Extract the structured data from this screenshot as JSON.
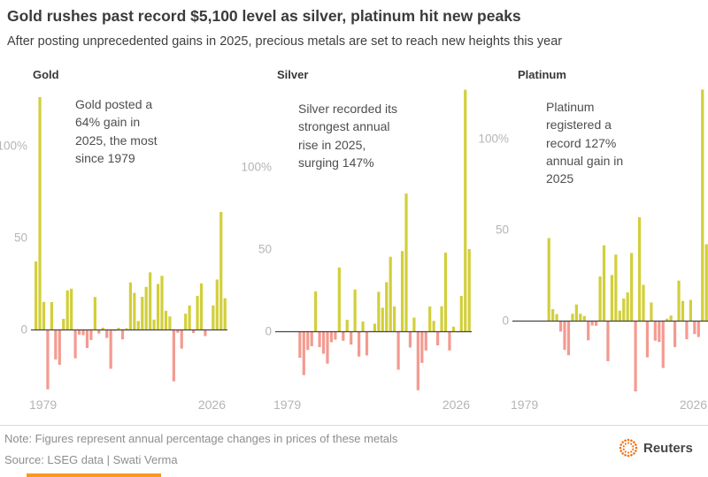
{
  "header": {
    "title": "Gold rushes past record $5,100 level as silver, platinum hit new peaks",
    "subtitle": "After posting unprecedented gains in 2025, precious metals are set to reach new heights this year"
  },
  "chart_data": [
    {
      "type": "bar",
      "title": "Gold",
      "annotation": "Gold posted a 64% gain in 2025, the most since 1979",
      "unit": "%",
      "ylabel": "annual % change",
      "ylim": [
        -40,
        130
      ],
      "grid": false,
      "y_ticks": [
        {
          "value": 100,
          "label": "100%"
        },
        {
          "value": 50,
          "label": "50"
        },
        {
          "value": 0,
          "label": "0"
        }
      ],
      "x_ticks": [
        {
          "year": 1979,
          "label": "1979"
        },
        {
          "year": 2026,
          "label": "2026"
        }
      ],
      "years": [
        1978,
        1979,
        1980,
        1981,
        1982,
        1983,
        1984,
        1985,
        1986,
        1987,
        1988,
        1989,
        1990,
        1991,
        1992,
        1993,
        1994,
        1995,
        1996,
        1997,
        1998,
        1999,
        2000,
        2001,
        2002,
        2003,
        2004,
        2005,
        2006,
        2007,
        2008,
        2009,
        2010,
        2011,
        2012,
        2013,
        2014,
        2015,
        2016,
        2017,
        2018,
        2019,
        2020,
        2021,
        2022,
        2023,
        2024,
        2025,
        2026
      ],
      "values": [
        37,
        126.5,
        15,
        -32.6,
        14.9,
        -16.3,
        -19.2,
        5.8,
        21.3,
        22.2,
        -15.7,
        -2.8,
        -3.1,
        -10.1,
        -5.7,
        17.7,
        -2.2,
        1.0,
        -4.6,
        -21.4,
        -0.8,
        0.9,
        -5.4,
        0.7,
        25.6,
        19.9,
        4.6,
        17.8,
        23.2,
        31.1,
        5.4,
        24.8,
        29.2,
        10.2,
        7.1,
        -28.2,
        -1.8,
        -10.4,
        8.6,
        13.1,
        -1.9,
        18.3,
        25.1,
        -3.6,
        -0.3,
        13.1,
        27.2,
        64,
        17
      ]
    },
    {
      "type": "bar",
      "title": "Silver",
      "annotation": "Silver recorded its strongest annual rise in 2025, surging 147%",
      "unit": "%",
      "ylabel": "annual % change",
      "ylim": [
        -40,
        147
      ],
      "grid": false,
      "y_ticks": [
        {
          "value": 100,
          "label": "100%"
        },
        {
          "value": 50,
          "label": "50"
        },
        {
          "value": 0,
          "label": "0"
        }
      ],
      "x_ticks": [
        {
          "year": 1979,
          "label": "1979"
        },
        {
          "year": 2026,
          "label": "2026"
        }
      ],
      "years": [
        1983,
        1984,
        1985,
        1986,
        1987,
        1988,
        1989,
        1990,
        1991,
        1992,
        1993,
        1994,
        1995,
        1996,
        1997,
        1998,
        1999,
        2000,
        2001,
        2002,
        2003,
        2004,
        2005,
        2006,
        2007,
        2008,
        2009,
        2010,
        2011,
        2012,
        2013,
        2014,
        2015,
        2016,
        2017,
        2018,
        2019,
        2020,
        2021,
        2022,
        2023,
        2024,
        2025,
        2026
      ],
      "values": [
        -16.1,
        -26.7,
        -11.4,
        -9.1,
        24.3,
        -9.7,
        -13.7,
        -19.7,
        -6.7,
        -5.1,
        38.8,
        -5.8,
        7.0,
        -8.1,
        25.4,
        -15.4,
        5.9,
        -14.7,
        0.2,
        4.6,
        24.0,
        14.3,
        29.9,
        45.3,
        15.1,
        -23.4,
        48.8,
        83.8,
        -9.9,
        8.3,
        -35.9,
        -19.3,
        -11.7,
        15.1,
        6.3,
        -8.6,
        15.2,
        47.9,
        -11.7,
        2.8,
        -0.7,
        21.5,
        147,
        50
      ]
    },
    {
      "type": "bar",
      "title": "Platinum",
      "annotation": "Platinum registered a record 127% annual gain in 2025",
      "unit": "%",
      "ylabel": "annual % change",
      "ylim": [
        -42,
        127
      ],
      "grid": false,
      "y_ticks": [
        {
          "value": 100,
          "label": "100%"
        },
        {
          "value": 50,
          "label": "50"
        },
        {
          "value": 0,
          "label": "0"
        }
      ],
      "x_ticks": [
        {
          "year": 1979,
          "label": "1979"
        },
        {
          "year": 2026,
          "label": "2026"
        }
      ],
      "years": [
        1986,
        1987,
        1988,
        1989,
        1990,
        1991,
        1992,
        1993,
        1994,
        1995,
        1996,
        1997,
        1998,
        1999,
        2000,
        2001,
        2002,
        2003,
        2004,
        2005,
        2006,
        2007,
        2008,
        2009,
        2010,
        2011,
        2012,
        2013,
        2014,
        2015,
        2016,
        2017,
        2018,
        2019,
        2020,
        2021,
        2022,
        2023,
        2024,
        2025,
        2026
      ],
      "values": [
        45.4,
        6.3,
        3.6,
        -6.0,
        -16.0,
        -19.0,
        3.8,
        8.9,
        3.8,
        2.5,
        -10.8,
        -2.7,
        -2.8,
        24.3,
        41.4,
        -22.3,
        25.1,
        36.3,
        5.5,
        12.2,
        15.5,
        37.2,
        -38.9,
        56.8,
        19.7,
        -20.2,
        10.0,
        -11.0,
        -11.7,
        -26.0,
        1.1,
        2.8,
        -14.5,
        22.0,
        10.8,
        -10.2,
        11.4,
        -7.4,
        -9.0,
        127,
        42
      ]
    }
  ],
  "footer": {
    "note": "Note: Figures represent annual percentage changes in prices of these metals",
    "source": "Source: LSEG data | Swati Verma",
    "brand": "Reuters"
  },
  "colors": {
    "positive_bar": "#d2cf3a",
    "negative_bar": "#f49a90",
    "axis_line": "#454545",
    "tick_label": "#b5b5b5",
    "brand_orange": "#fa6400",
    "bottom_accent": "#f8981d"
  }
}
